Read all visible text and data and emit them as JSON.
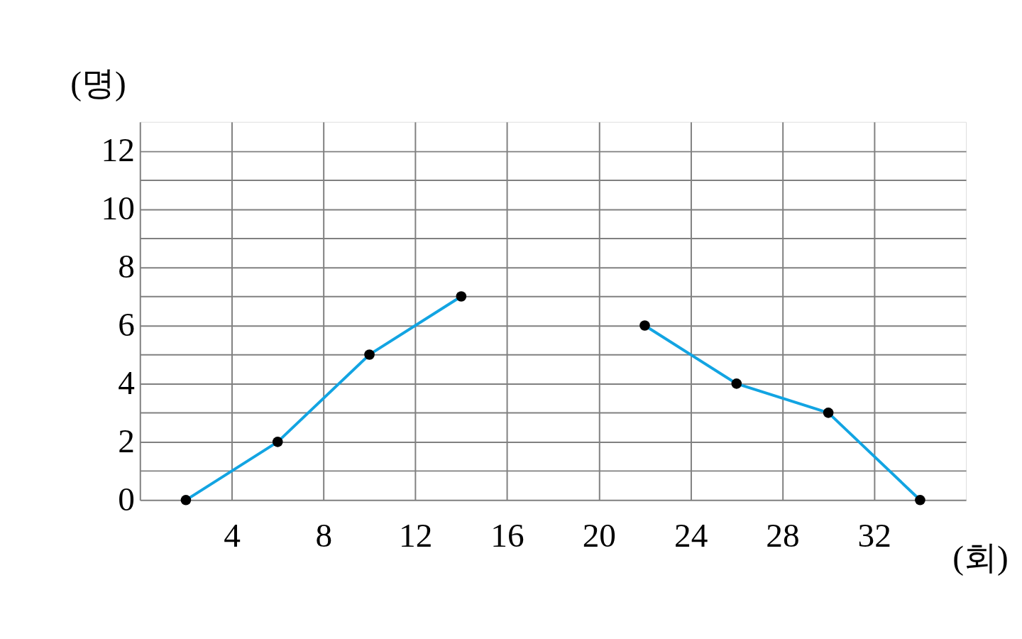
{
  "chart_data": {
    "type": "line",
    "xlabel": "(회)",
    "ylabel": "(명)",
    "x": [
      2,
      6,
      10,
      14,
      18,
      22,
      26,
      30,
      34
    ],
    "series": [
      {
        "color": "#12a4e2",
        "values": [
          0,
          2,
          5,
          7,
          null,
          6,
          4,
          3,
          0
        ]
      }
    ],
    "xlim": [
      0,
      36
    ],
    "ylim": [
      0,
      13
    ],
    "xticks": [
      {
        "value": 0,
        "label": null
      },
      4,
      8,
      12,
      16,
      20,
      24,
      28,
      32
    ],
    "yticks": [
      0,
      {
        "value": 1,
        "label": null
      },
      2,
      {
        "value": 3,
        "label": null
      },
      4,
      {
        "value": 5,
        "label": null
      },
      6,
      {
        "value": 7,
        "label": null
      },
      8,
      {
        "value": 9,
        "label": null
      },
      10,
      {
        "value": 11,
        "label": null
      },
      12
    ],
    "grid": true,
    "marker": "circle",
    "line_style": "solid"
  }
}
